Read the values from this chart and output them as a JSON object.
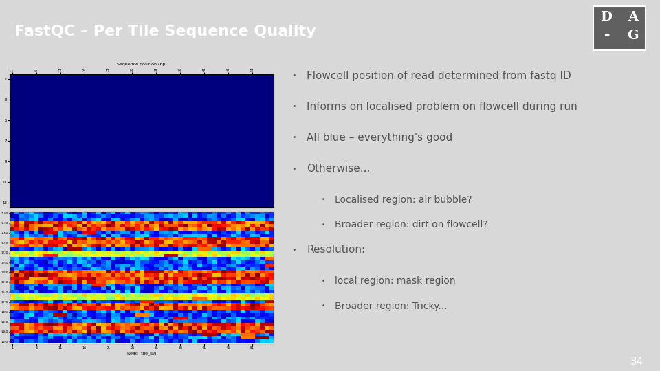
{
  "title": "FastQC – Per Tile Sequence Quality",
  "title_bg": "#606060",
  "title_color": "#ffffff",
  "content_bg": "#d8d8d8",
  "bottom_bar_bg": "#555555",
  "bullet_points": [
    {
      "text": "Flowcell position of read determined from fastq ID",
      "level": 0
    },
    {
      "text": "Informs on localised problem on flowcell during run",
      "level": 0
    },
    {
      "text": "All blue – everything's good",
      "level": 0
    },
    {
      "text": "Otherwise...",
      "level": 0
    },
    {
      "text": "Localised region: air bubble?",
      "level": 1
    },
    {
      "text": "Broader region: dirt on flowcell?",
      "level": 1
    },
    {
      "text": "Resolution:",
      "level": 0
    },
    {
      "text": "local region: mask region",
      "level": 1
    },
    {
      "text": "Broader region: Tricky...",
      "level": 1
    }
  ],
  "slide_number": "34",
  "text_color": "#555555",
  "font_size_l0": 11,
  "font_size_l1": 10
}
